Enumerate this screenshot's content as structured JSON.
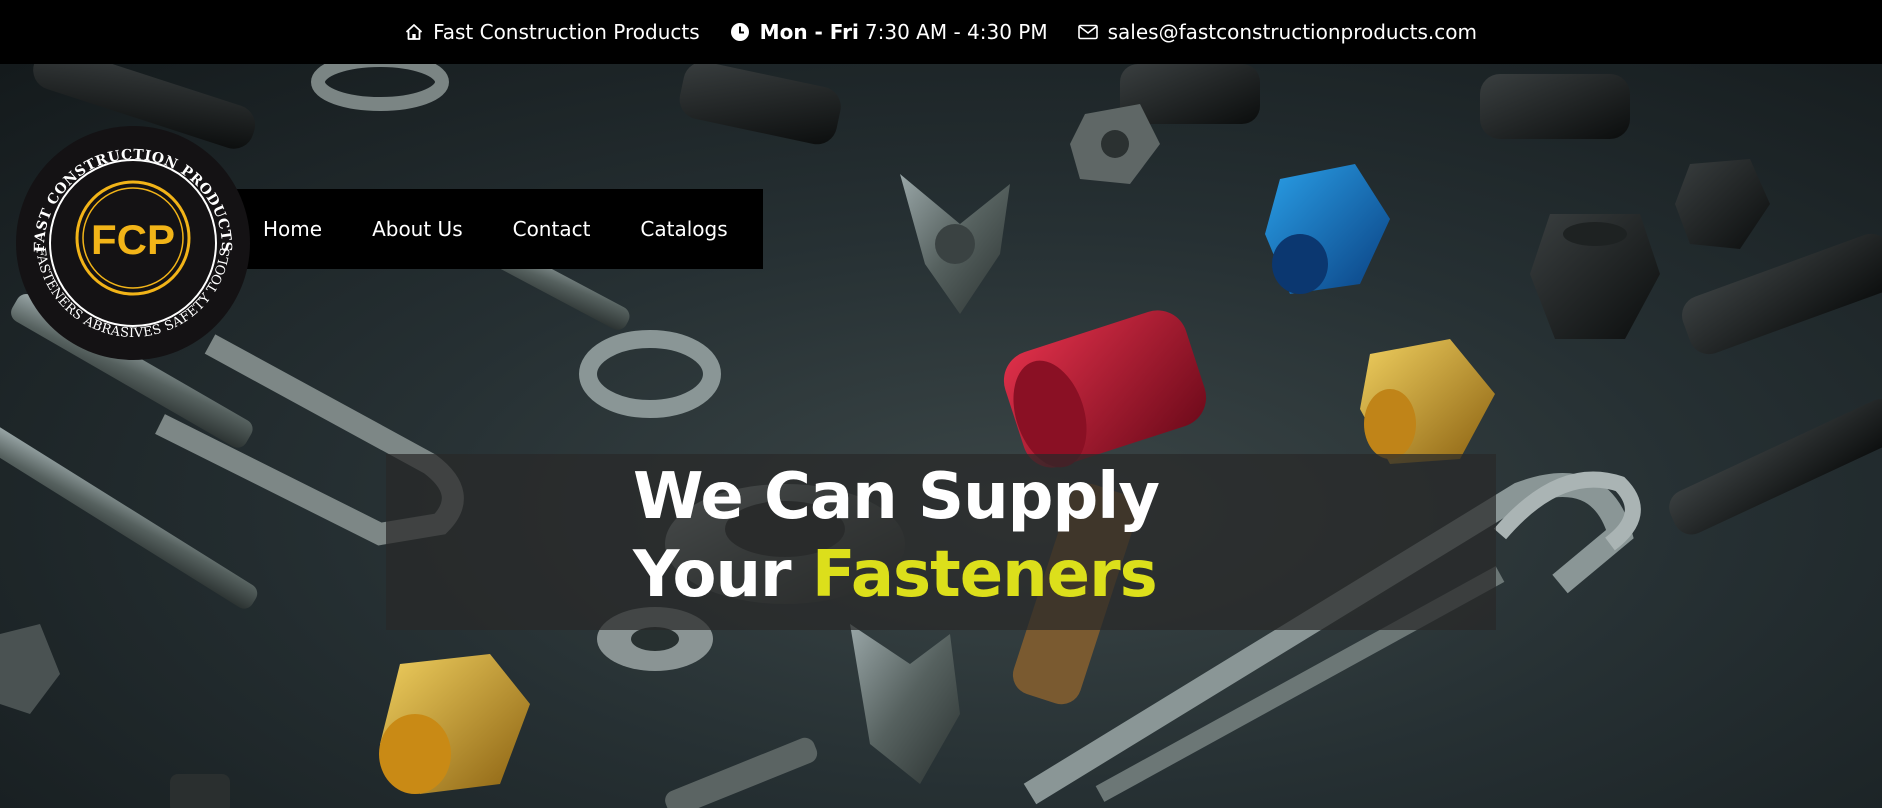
{
  "topbar": {
    "company": {
      "icon": "home-icon",
      "text": "Fast Construction Products"
    },
    "hours": {
      "icon": "clock-icon",
      "days": "Mon - Fri",
      "time": "7:30 AM - 4:30 PM"
    },
    "email": {
      "icon": "envelope-icon",
      "text": "sales@fastconstructionproducts.com"
    }
  },
  "logo": {
    "initials": "FCP",
    "top_arc": "FAST CONSTRUCTION PRODUCTS",
    "bottom_arc": "FASTENERS ABRASIVES SAFETY TOOLS"
  },
  "nav": {
    "items": [
      {
        "label": "Home"
      },
      {
        "label": "About Us"
      },
      {
        "label": "Contact"
      },
      {
        "label": "Catalogs"
      }
    ]
  },
  "hero": {
    "line1": "We Can Supply",
    "line2_prefix": "Your ",
    "line2_accent": "Fasteners"
  },
  "colors": {
    "accent": "#dcdf1b",
    "logo_gold": "#f2b418",
    "topbar": "#000000"
  }
}
